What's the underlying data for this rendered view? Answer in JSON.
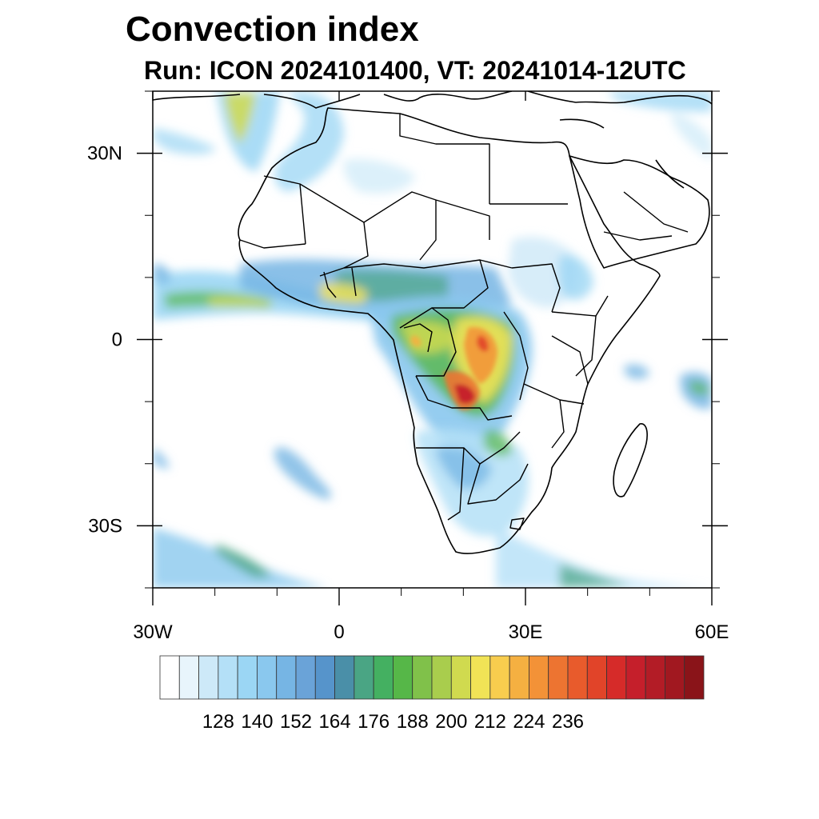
{
  "title": "Convection index",
  "subtitle": "Run: ICON 2024101400,  VT: 20241014-12UTC",
  "map": {
    "region": "Africa",
    "lon_range": [
      -30,
      60
    ],
    "lat_range": [
      -40,
      40
    ],
    "lat_ticks": [
      {
        "value": 30,
        "label": "30N"
      },
      {
        "value": 0,
        "label": "0"
      },
      {
        "value": -30,
        "label": "30S"
      }
    ],
    "lon_ticks": [
      {
        "value": -30,
        "label": "30W"
      },
      {
        "value": 0,
        "label": "0"
      },
      {
        "value": 30,
        "label": "30E"
      },
      {
        "value": 60,
        "label": "60E"
      }
    ],
    "minor_lat_ticks": [
      40,
      20,
      10,
      -10,
      -20,
      -40
    ],
    "minor_lon_ticks": [
      -20,
      -10,
      10,
      20,
      40,
      50
    ]
  },
  "colorbar": {
    "labels": [
      "128",
      "140",
      "152",
      "164",
      "176",
      "188",
      "200",
      "212",
      "224",
      "236"
    ],
    "colors": [
      "#ffffff",
      "#e8f5fc",
      "#cde9f8",
      "#b4e0f7",
      "#9bd6f4",
      "#8ac8ee",
      "#76b5e4",
      "#6aa3d8",
      "#5694cb",
      "#4a8fa8",
      "#4aa584",
      "#44b061",
      "#56b748",
      "#80c14a",
      "#a9cd4d",
      "#d0da4f",
      "#f1e356",
      "#f8cd4e",
      "#f5b041",
      "#f39237",
      "#ed7431",
      "#e85b2c",
      "#e14429",
      "#d62b29",
      "#c51f2b",
      "#b31c26",
      "#a11820",
      "#8a1419"
    ]
  }
}
